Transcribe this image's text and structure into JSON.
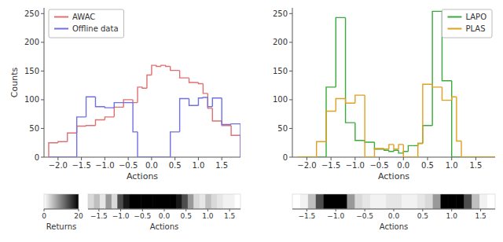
{
  "chart_data": [
    {
      "type": "histogram",
      "xlabel": "Actions",
      "ylabel": "Counts",
      "bins": [
        -2.2,
        -2.0,
        -1.8,
        -1.6,
        -1.4,
        -1.2,
        -1.0,
        -0.8,
        -0.6,
        -0.4,
        -0.3,
        -0.2,
        -0.1,
        0.0,
        0.1,
        0.2,
        0.3,
        0.4,
        0.6,
        0.8,
        1.0,
        1.1,
        1.2,
        1.3,
        1.5,
        1.7,
        1.9
      ],
      "series": [
        {
          "name": "AWAC",
          "color": "#e07070",
          "values": [
            25,
            27,
            42,
            54,
            55,
            65,
            70,
            87,
            100,
            95,
            122,
            120,
            143,
            160,
            158,
            160,
            158,
            151,
            138,
            130,
            128,
            111,
            85,
            63,
            55,
            38
          ]
        },
        {
          "name": "Offline data",
          "color": "#7070e0",
          "values": [
            0,
            0,
            0,
            70,
            105,
            88,
            86,
            95,
            95,
            44,
            0,
            0,
            0,
            0,
            0,
            0,
            0,
            44,
            102,
            90,
            103,
            104,
            88,
            103,
            57,
            58
          ]
        }
      ],
      "xlim": [
        -2.3,
        1.9
      ],
      "xticks": [
        {
          "value": -2.0,
          "label": "−2.0"
        },
        {
          "value": -1.5,
          "label": "−1.5"
        },
        {
          "value": -1.0,
          "label": "−1.0"
        },
        {
          "value": -0.5,
          "label": "−0.5"
        },
        {
          "value": 0.0,
          "label": "0.0"
        },
        0.5,
        {
          "value": 1.0,
          "label": "1.0"
        },
        1.5
      ],
      "ylim": [
        0,
        260
      ],
      "yticks": [
        0,
        50,
        100,
        150,
        200,
        250
      ],
      "grid": false,
      "legend": "upper left"
    },
    {
      "type": "histogram",
      "xlabel": "Actions",
      "bins": [
        -2.2,
        -2.0,
        -1.8,
        -1.6,
        -1.4,
        -1.2,
        -1.0,
        -0.8,
        -0.6,
        -0.4,
        -0.3,
        -0.2,
        -0.1,
        0.0,
        0.1,
        0.2,
        0.3,
        0.4,
        0.6,
        0.8,
        1.0,
        1.1,
        1.2,
        1.3,
        1.5,
        1.7,
        1.9
      ],
      "series": [
        {
          "name": "LAPO",
          "color": "#3aaa3a",
          "values": [
            0,
            0,
            0,
            122,
            243,
            60,
            29,
            26,
            14,
            12,
            10,
            12,
            7,
            10,
            20,
            20,
            24,
            55,
            254,
            133,
            0,
            0,
            0,
            0,
            0,
            0
          ]
        },
        {
          "name": "PLAS",
          "color": "#e0a020",
          "values": [
            0,
            0,
            27,
            80,
            102,
            94,
            108,
            0,
            15,
            14,
            22,
            14,
            22,
            0,
            0,
            0,
            24,
            127,
            122,
            99,
            105,
            28,
            0,
            0,
            0,
            0
          ]
        }
      ],
      "xlim": [
        -2.3,
        1.9
      ],
      "xticks": [
        {
          "value": -2.0,
          "label": "−2.0"
        },
        {
          "value": -1.5,
          "label": "−1.5"
        },
        {
          "value": -1.0,
          "label": "−1.0"
        },
        {
          "value": -0.5,
          "label": "−0.5"
        },
        {
          "value": 0.0,
          "label": "0.0"
        },
        0.5,
        {
          "value": 1.0,
          "label": "1.0"
        },
        1.5
      ],
      "ylim": [
        0,
        260
      ],
      "yticks": [
        0,
        50,
        100,
        150,
        200,
        250
      ],
      "grid": false,
      "legend": "upper right"
    },
    {
      "type": "heatmap",
      "xlabel": "Actions",
      "values": [
        3,
        5,
        2,
        8,
        3,
        14,
        18,
        20,
        20,
        20,
        20,
        20,
        20,
        20,
        20,
        18,
        14,
        8,
        3,
        2,
        5,
        3,
        2,
        1,
        1,
        0
      ],
      "xlim": [
        -1.75,
        1.75
      ],
      "xticks": [
        {
          "value": -1.5,
          "label": "−1.5"
        },
        {
          "value": -1.0,
          "label": "−1.0"
        },
        {
          "value": -0.5,
          "label": "−0.5"
        },
        {
          "value": 0.0,
          "label": "0.0"
        },
        0.5,
        {
          "value": 1.0,
          "label": "1.0"
        },
        1.5
      ],
      "color_range": [
        0,
        20
      ],
      "color_ticks": [
        0,
        20
      ],
      "color_label": "Returns",
      "tick_labels": "x"
    },
    {
      "type": "heatmap",
      "xlabel": "Actions",
      "values": [
        0,
        1,
        5,
        14,
        20,
        20,
        20,
        8,
        3,
        2,
        1,
        1,
        2,
        2,
        1,
        1,
        2,
        3,
        8,
        20,
        20,
        20,
        14,
        5,
        1,
        0
      ],
      "xlim": [
        -1.75,
        1.75
      ],
      "xticks": [
        {
          "value": -1.5,
          "label": "−1.5"
        },
        {
          "value": -1.0,
          "label": "−1.0"
        },
        {
          "value": -0.5,
          "label": "−0.5"
        },
        {
          "value": 0.0,
          "label": "0.0"
        },
        0.5,
        {
          "value": 1.0,
          "label": "1.0"
        },
        1.5
      ],
      "color_range": [
        0,
        20
      ],
      "tick_labels": "x"
    }
  ]
}
